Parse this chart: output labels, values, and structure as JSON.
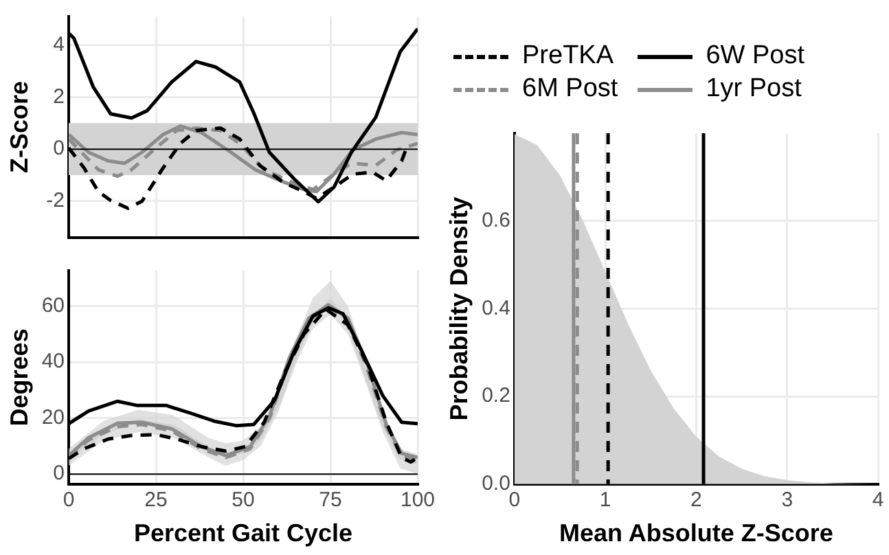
{
  "chart_data": [
    {
      "type": "line",
      "ylabel": "Z-Score",
      "xlim": [
        0,
        100
      ],
      "xticks": [
        0,
        25,
        50,
        75,
        100
      ],
      "ylim": [
        -3.4,
        5.1
      ],
      "yticks": [
        -2,
        0,
        2,
        4
      ],
      "tick_labels": "y",
      "grid": true,
      "legend": "right",
      "bands": [
        {
          "axis": "y",
          "from": -1,
          "to": 1,
          "color": "#d3d3d3"
        }
      ],
      "ref_lines": [
        {
          "axis": "y",
          "value": 0,
          "color": "#000000",
          "line_style": "solid"
        }
      ],
      "series": [
        {
          "name": "PreTKA",
          "color": "#000000",
          "line_style": "dashed",
          "x": [
            0,
            4.3,
            8.5,
            12,
            17,
            21,
            26.7,
            32,
            36.5,
            43.5,
            49,
            54.7,
            61.8,
            67.4,
            70.9,
            76,
            81.4,
            87,
            91,
            95.4,
            96.8
          ],
          "values": [
            0.05,
            -0.7,
            -1.63,
            -1.97,
            -2.27,
            -2.0,
            -0.79,
            0.22,
            0.72,
            0.81,
            0.39,
            -0.62,
            -1.3,
            -1.63,
            -1.89,
            -1.46,
            -0.96,
            -0.88,
            -1.21,
            -0.45,
            0.05
          ]
        },
        {
          "name": "6W Post",
          "color": "#000000",
          "line_style": "solid",
          "x": [
            0,
            1.5,
            7,
            12,
            18,
            22.5,
            29.5,
            36.5,
            42,
            49,
            53,
            57.5,
            64.5,
            71.5,
            76,
            81,
            88,
            95,
            100
          ],
          "values": [
            4.46,
            4.26,
            2.4,
            1.36,
            1.2,
            1.48,
            2.58,
            3.37,
            3.16,
            2.58,
            1.4,
            -0.12,
            -1.13,
            -2.02,
            -1.46,
            -0.12,
            1.23,
            3.75,
            4.63
          ]
        },
        {
          "name": "6M Post",
          "color": "#8c8c8c",
          "line_style": "dashed",
          "x": [
            0,
            3,
            8.5,
            14,
            18,
            25,
            31,
            36.5,
            43.5,
            49,
            56,
            64.5,
            70,
            76,
            81,
            88,
            94,
            100
          ],
          "values": [
            0.39,
            -0.03,
            -0.79,
            -1.04,
            -0.79,
            0.05,
            0.72,
            0.81,
            0.72,
            0.22,
            -0.79,
            -1.3,
            -1.55,
            -0.96,
            -0.54,
            -0.62,
            -0.03,
            0.22
          ]
        },
        {
          "name": "1yr Post",
          "color": "#8c8c8c",
          "line_style": "solid",
          "x": [
            0,
            5.7,
            11.3,
            16,
            21,
            27,
            32,
            38,
            46.5,
            53.5,
            60.6,
            67.4,
            71,
            76,
            81.4,
            88,
            95.4,
            100
          ],
          "values": [
            0.56,
            -0.12,
            -0.45,
            -0.54,
            -0.12,
            0.56,
            0.89,
            0.64,
            -0.12,
            -0.79,
            -1.21,
            -1.55,
            -1.63,
            -0.96,
            -0.03,
            0.39,
            0.64,
            0.56
          ]
        }
      ]
    },
    {
      "type": "line",
      "xlabel": "Percent Gait Cycle",
      "ylabel": "Degrees",
      "xlim": [
        0,
        100
      ],
      "xticks": [
        0,
        25,
        50,
        75,
        100
      ],
      "ylim": [
        -3.6,
        72.7
      ],
      "yticks": [
        0,
        20,
        40,
        60
      ],
      "grid": true,
      "ref_lines": [
        {
          "axis": "y",
          "value": 0,
          "color": "#000000",
          "line_style": "solid"
        }
      ],
      "series": [
        {
          "color": "#d3d3d3",
          "line_style": "solid",
          "x": [
            0,
            10,
            20,
            30,
            40,
            45,
            50,
            55,
            60,
            65,
            70,
            75,
            80,
            85,
            90,
            95,
            100
          ],
          "values": [
            6,
            15,
            19,
            17,
            9,
            7,
            8,
            13,
            25,
            42,
            56,
            62,
            54,
            36,
            18,
            6,
            4
          ],
          "lower": [
            3,
            12,
            15,
            13,
            6,
            3,
            5,
            10,
            22,
            39,
            52,
            57,
            50,
            33,
            15,
            2,
            0
          ],
          "upper": [
            9,
            19,
            23,
            21,
            13,
            11,
            12,
            17,
            30,
            48,
            63,
            69,
            60,
            41,
            22,
            9,
            7
          ]
        },
        {
          "color": "#000000",
          "line_style": "dashed",
          "x": [
            0,
            4.3,
            11.3,
            18,
            25,
            31,
            38,
            45,
            50.6,
            56,
            61.8,
            67.4,
            73.7,
            80,
            85.6,
            91,
            95.4,
            98,
            100
          ],
          "values": [
            5.5,
            9,
            12.5,
            13.8,
            14.1,
            12.5,
            9.8,
            8.2,
            9.8,
            18.5,
            36,
            50,
            58.9,
            53.3,
            39.1,
            18.5,
            5.9,
            4.3,
            5.9
          ]
        },
        {
          "color": "#000000",
          "line_style": "solid",
          "x": [
            0,
            5.7,
            14,
            19.7,
            28,
            35,
            42,
            48,
            53,
            59,
            64.6,
            70,
            74.4,
            78.6,
            84,
            90,
            95.4,
            100
          ],
          "values": [
            18,
            22.5,
            26,
            24.5,
            24.5,
            21.7,
            18.8,
            17.3,
            17.7,
            26.4,
            43.9,
            56.5,
            59.4,
            57.3,
            43.9,
            28,
            18.5,
            18
          ]
        },
        {
          "color": "#8c8c8c",
          "line_style": "dashed",
          "x": [
            0,
            5.7,
            14,
            21,
            29.6,
            38,
            45,
            52,
            57.6,
            63.2,
            68.8,
            74.4,
            80,
            85.6,
            91,
            95.4,
            100
          ],
          "values": [
            6.2,
            12.2,
            16.9,
            17.7,
            15.4,
            9,
            5.9,
            9,
            20.1,
            40.7,
            54.9,
            60,
            54.9,
            37.5,
            16.9,
            6.6,
            5.1
          ]
        },
        {
          "color": "#8c8c8c",
          "line_style": "solid",
          "x": [
            0,
            5.7,
            14,
            21,
            29.6,
            38,
            45,
            52,
            57.6,
            63.2,
            68.8,
            74.4,
            80,
            85.6,
            91,
            95.4,
            100
          ],
          "values": [
            6.6,
            13,
            18.2,
            18.5,
            16.1,
            9.8,
            6.6,
            9.8,
            20.9,
            41.5,
            55.7,
            60.5,
            55.7,
            39.1,
            17.7,
            7.4,
            5.9
          ]
        }
      ]
    },
    {
      "type": "area",
      "xlabel": "Mean Absolute Z-Score",
      "ylabel": "Probability Density",
      "xlim": [
        0,
        4
      ],
      "xticks": [
        0,
        1,
        2,
        3,
        4
      ],
      "ylim": [
        0,
        0.8
      ],
      "yticks": [
        {
          "value": 0,
          "label": "0.0"
        },
        {
          "value": 0.2,
          "label": "0.2"
        },
        {
          "value": 0.4,
          "label": "0.4"
        },
        {
          "value": 0.6,
          "label": "0.6"
        }
      ],
      "grid": true,
      "ref_lines": [
        {
          "axis": "x",
          "value": 0.65,
          "color": "#8c8c8c",
          "line_style": "solid"
        },
        {
          "axis": "x",
          "value": 0.69,
          "color": "#8c8c8c",
          "line_style": "dashed"
        },
        {
          "axis": "x",
          "value": 1.03,
          "color": "#000000",
          "line_style": "dashed"
        },
        {
          "axis": "x",
          "value": 2.08,
          "color": "#000000",
          "line_style": "solid"
        }
      ],
      "series": [
        {
          "color": "#d3d3d3",
          "x": [
            0,
            0.25,
            0.5,
            0.75,
            1,
            1.25,
            1.5,
            1.75,
            2,
            2.25,
            2.5,
            2.75,
            3,
            3.25,
            3.5,
            3.75,
            4
          ],
          "values": [
            0.798,
            0.773,
            0.704,
            0.602,
            0.484,
            0.365,
            0.259,
            0.173,
            0.108,
            0.063,
            0.035,
            0.018,
            0.009,
            0.004,
            0.002,
            0.001,
            0
          ]
        }
      ]
    }
  ]
}
